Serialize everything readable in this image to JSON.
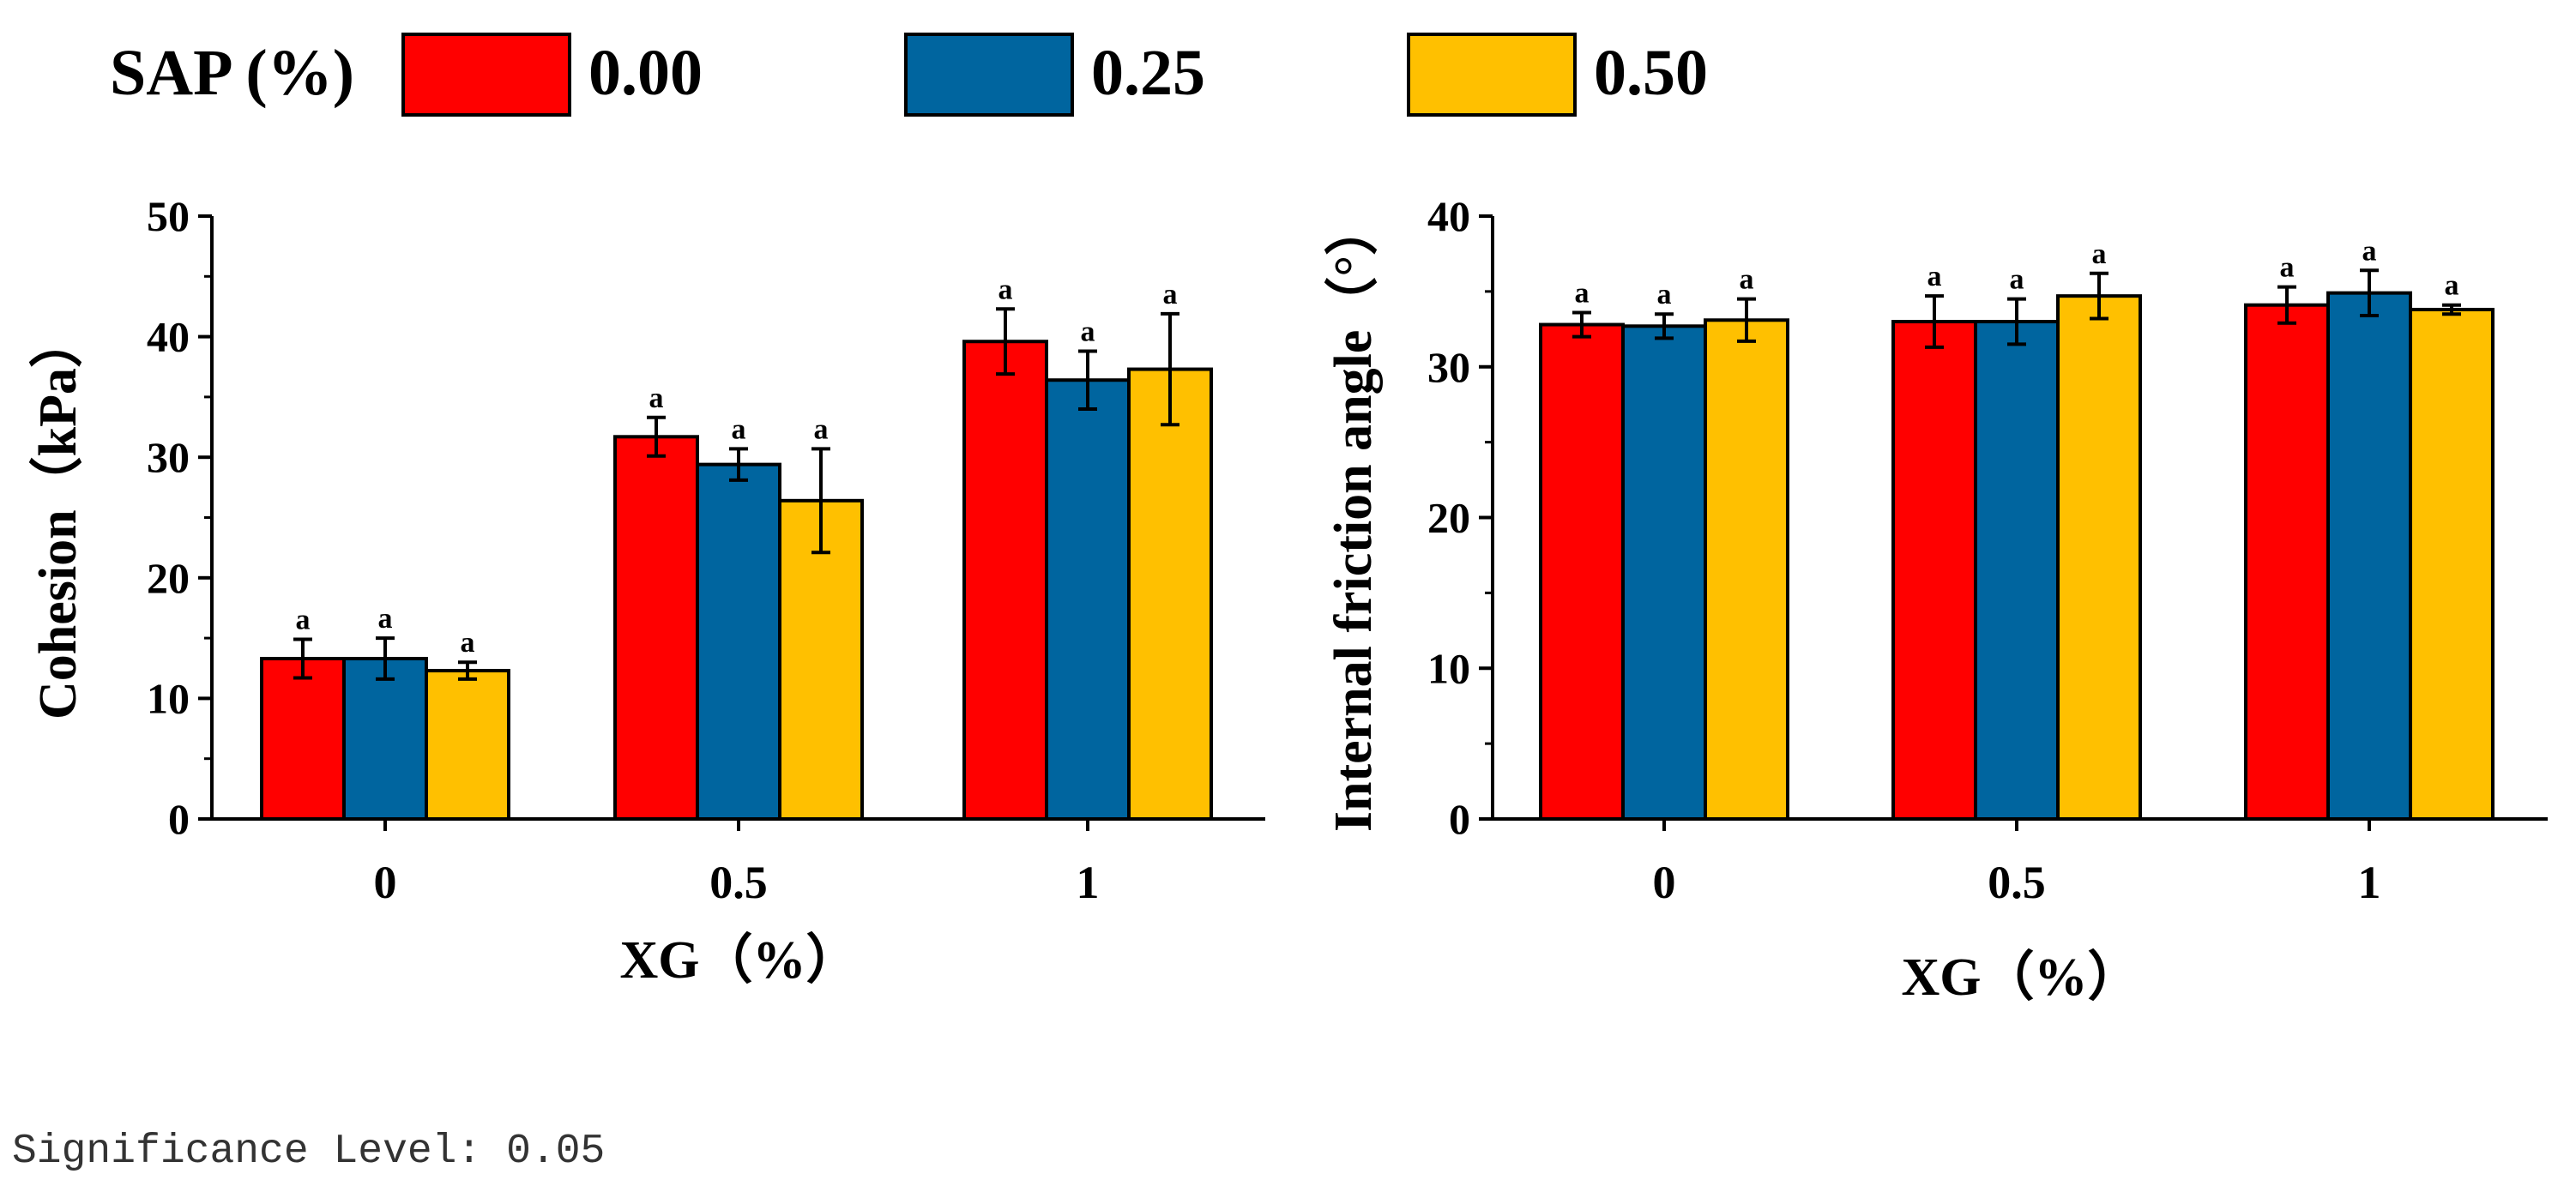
{
  "legend": {
    "title": "SAP (%)",
    "entries": [
      {
        "label": "0.00",
        "color": "#FF0000"
      },
      {
        "label": "0.25",
        "color": "#00659F"
      },
      {
        "label": "0.50",
        "color": "#FFC000"
      }
    ]
  },
  "footer": {
    "significance_text": "Significance Level: 0.05"
  },
  "chart_data": [
    {
      "type": "bar",
      "ylabel": "Cohesion（kPa）",
      "xlabel": "XG（%）",
      "categories": [
        "0",
        "0.5",
        "1"
      ],
      "ylim": [
        0,
        50
      ],
      "yticks": [
        "0",
        "10",
        "20",
        "30",
        "40",
        "50"
      ],
      "grid": false,
      "legend_position": "top (shared)",
      "series": [
        {
          "name": "0.00",
          "color": "#FF0000",
          "values": [
            13.3,
            31.7,
            39.6
          ],
          "errors": [
            1.6,
            1.6,
            2.7
          ],
          "letters": [
            "a",
            "a",
            "a"
          ]
        },
        {
          "name": "0.25",
          "color": "#00659F",
          "values": [
            13.3,
            29.4,
            36.4
          ],
          "errors": [
            1.7,
            1.3,
            2.4
          ],
          "letters": [
            "a",
            "a",
            "a"
          ]
        },
        {
          "name": "0.50",
          "color": "#FFC000",
          "values": [
            12.3,
            26.4,
            37.3
          ],
          "errors": [
            0.7,
            4.3,
            4.6
          ],
          "letters": [
            "a",
            "a",
            "a"
          ]
        }
      ]
    },
    {
      "type": "bar",
      "ylabel": "Internal friction angle（°）",
      "xlabel": "XG（%）",
      "categories": [
        "0",
        "0.5",
        "1"
      ],
      "ylim": [
        0,
        40
      ],
      "yticks": [
        "0",
        "10",
        "20",
        "30",
        "40"
      ],
      "grid": false,
      "legend_position": "top (shared)",
      "series": [
        {
          "name": "0.00",
          "color": "#FF0000",
          "values": [
            32.8,
            33.0,
            34.1
          ],
          "errors": [
            0.8,
            1.7,
            1.2
          ],
          "letters": [
            "a",
            "a",
            "a"
          ]
        },
        {
          "name": "0.25",
          "color": "#00659F",
          "values": [
            32.7,
            33.0,
            34.9
          ],
          "errors": [
            0.8,
            1.5,
            1.5
          ],
          "letters": [
            "a",
            "a",
            "a"
          ]
        },
        {
          "name": "0.50",
          "color": "#FFC000",
          "values": [
            33.1,
            34.7,
            33.8
          ],
          "errors": [
            1.4,
            1.5,
            0.3
          ],
          "letters": [
            "a",
            "a",
            "a"
          ]
        }
      ]
    }
  ]
}
